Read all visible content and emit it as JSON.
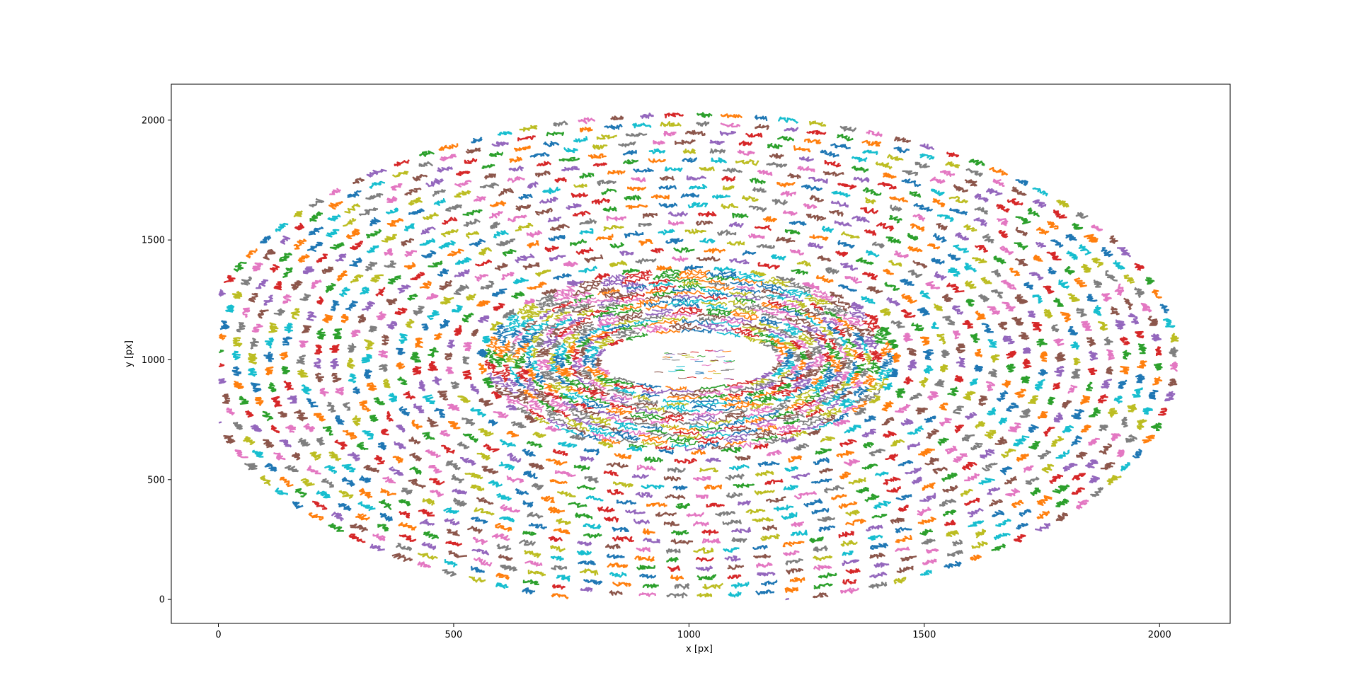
{
  "chart_data": {
    "type": "line",
    "title": "",
    "xlabel": "x [px]",
    "ylabel": "y [px]",
    "xlim": [
      -100,
      2150
    ],
    "ylim": [
      2150,
      -100
    ],
    "y_inverted": true,
    "x_ticks": [
      0,
      500,
      1000,
      1500,
      2000
    ],
    "y_ticks": [
      0,
      500,
      1000,
      1500,
      2000
    ],
    "x_tick_labels": [
      "0",
      "500",
      "1000",
      "1500",
      "2000"
    ],
    "y_tick_labels": [
      "0",
      "500",
      "1000",
      "1500",
      "2000"
    ],
    "grid": false,
    "legend": "none",
    "description_of_data": "many short particle trajectories forming a vortex around center",
    "vortex": {
      "center": [
        1000,
        1000
      ],
      "inner_radius_x": 195,
      "inner_radius_y": 120,
      "outer_radius_x": 1050,
      "outer_radius_y": 1040,
      "data_extent_x": [
        0,
        2050
      ],
      "data_extent_y": [
        0,
        2050
      ]
    },
    "palette": [
      "#1f77b4",
      "#ff7f0e",
      "#2ca02c",
      "#d62728",
      "#9467bd",
      "#8c564b",
      "#e377c2",
      "#7f7f7f",
      "#bcbd22",
      "#17becf"
    ]
  }
}
